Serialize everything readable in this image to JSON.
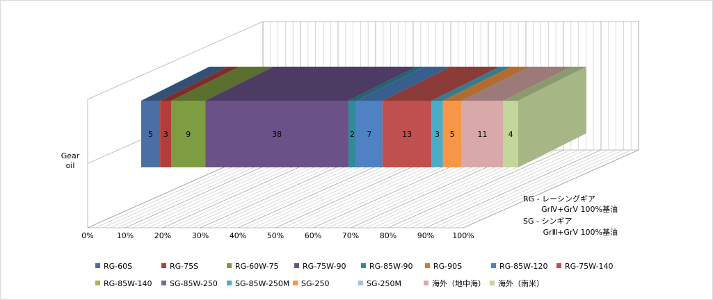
{
  "chart_data": {
    "type": "bar",
    "subtype": "3d-stacked-horizontal-100-percent",
    "categories": [
      "Gear oil"
    ],
    "category_label_lines": [
      "Gear",
      "oil"
    ],
    "x_ticks": [
      "0%",
      "10%",
      "20%",
      "30%",
      "40%",
      "50%",
      "60%",
      "70%",
      "80%",
      "90%",
      "100%"
    ],
    "xlim": [
      0,
      100
    ],
    "series": [
      {
        "name": "RG-60S",
        "values": [
          5
        ],
        "color": "#4A6FA5"
      },
      {
        "name": "RG-75S",
        "values": [
          3
        ],
        "color": "#B13E3B"
      },
      {
        "name": "RG-60W-75",
        "values": [
          9
        ],
        "color": "#7E9C41"
      },
      {
        "name": "RG-75W-90",
        "values": [
          38
        ],
        "color": "#6A5289"
      },
      {
        "name": "RG-85W-90",
        "values": [
          2
        ],
        "color": "#2E8C9A"
      },
      {
        "name": "RG-90S",
        "values": [
          0
        ],
        "color": "#D7792D"
      },
      {
        "name": "RG-85W-120",
        "values": [
          7
        ],
        "color": "#4E82C5"
      },
      {
        "name": "RG-75W-140",
        "values": [
          13
        ],
        "color": "#C0504D"
      },
      {
        "name": "RG-85W-140",
        "values": [
          0
        ],
        "color": "#9BBB59"
      },
      {
        "name": "SG-85W-250",
        "values": [
          0
        ],
        "color": "#8064A2"
      },
      {
        "name": "SG-85W-250M",
        "values": [
          3
        ],
        "color": "#4BACC6"
      },
      {
        "name": "SG-250",
        "values": [
          5
        ],
        "color": "#F79646"
      },
      {
        "name": "SG-250M",
        "values": [
          0
        ],
        "color": "#A9BDE0"
      },
      {
        "name": "海外（地中海）",
        "values": [
          11
        ],
        "color": "#D9A9A9"
      },
      {
        "name": "海外（南米）",
        "values": [
          4
        ],
        "color": "#C3D69B"
      }
    ],
    "remainder_color": "#7F8C6E",
    "legend_position": "bottom",
    "annotation_lines": [
      "RG -  レーシングギア",
      "GrⅣ+GrⅤ 100%基油",
      "SG -  シンギア",
      "GrⅢ+GrⅤ 100%基油"
    ]
  }
}
